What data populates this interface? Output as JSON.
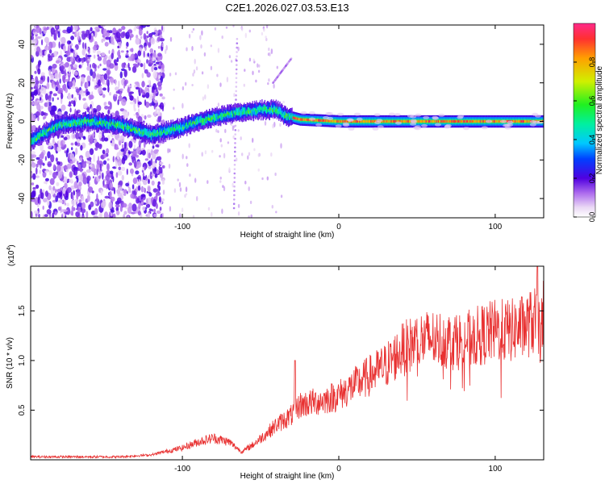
{
  "title": "C2E1.2026.027.03.53.E13",
  "chart_data": [
    {
      "type": "heatmap",
      "name": "spectrogram",
      "xlabel": "Height of straight line (km)",
      "ylabel": "Frequency (Hz)",
      "xlim": [
        -197,
        131
      ],
      "ylim": [
        -50,
        50
      ],
      "xticks": [
        -100,
        0,
        100
      ],
      "xtick_labels": [
        "-100",
        "0",
        "100"
      ],
      "yticks": [
        -40,
        -20,
        0,
        20,
        40
      ],
      "ytick_labels": [
        "-40",
        "-20",
        "0",
        "20",
        "40"
      ],
      "colorbar": {
        "label": "Normalized spectral amplitude",
        "range": [
          0,
          1
        ],
        "ticks": [
          0.0,
          0.2,
          0.4,
          0.6,
          0.8
        ],
        "tick_labels": [
          "0.0",
          "0.2",
          "0.4",
          "0.6",
          "0.8"
        ],
        "colormap": "rainbow"
      },
      "ridge": {
        "x": [
          -197,
          -180,
          -160,
          -140,
          -120,
          -110,
          -100,
          -90,
          -80,
          -70,
          -60,
          -50,
          -40,
          -35,
          -30,
          -25,
          0,
          131
        ],
        "y": [
          -10,
          -2,
          0,
          -2,
          -7,
          -5,
          -3,
          0,
          2,
          4,
          5,
          6,
          6,
          3,
          2,
          1,
          0,
          0
        ]
      },
      "artifacts": [
        {
          "x": [
            -42,
            -30
          ],
          "y": [
            20,
            33
          ]
        },
        {
          "x": [
            -67,
            -65
          ],
          "y": [
            -45,
            45
          ]
        }
      ]
    },
    {
      "type": "line",
      "name": "snr",
      "xlabel": "Height of straight line (km)",
      "ylabel": "SNR (10 * v/v)",
      "multiplier_label": "(x10",
      "multiplier_exp": "4",
      "multiplier_close": ")",
      "xlim": [
        -197,
        131
      ],
      "ylim": [
        0,
        1.95
      ],
      "xticks": [
        -100,
        0,
        100
      ],
      "xtick_labels": [
        "-100",
        "0",
        "100"
      ],
      "yticks": [
        0.5,
        1.0,
        1.5
      ],
      "ytick_labels": [
        "0.5",
        "1.0",
        "1.5"
      ],
      "color": "#e83030",
      "envelope": {
        "x": [
          -197,
          -140,
          -120,
          -100,
          -90,
          -80,
          -70,
          -62,
          -55,
          -45,
          -40,
          -30,
          -25,
          -10,
          0,
          10,
          20,
          30,
          40,
          50,
          60,
          70,
          80,
          90,
          100,
          110,
          120,
          125,
          131
        ],
        "y": [
          0.03,
          0.03,
          0.05,
          0.12,
          0.18,
          0.22,
          0.18,
          0.08,
          0.15,
          0.28,
          0.35,
          0.45,
          0.55,
          0.6,
          0.65,
          0.75,
          0.85,
          0.95,
          1.1,
          1.2,
          1.22,
          1.2,
          1.2,
          1.25,
          1.3,
          1.3,
          1.35,
          1.4,
          1.3
        ]
      },
      "spikes": [
        {
          "x": -28,
          "y": 1.0
        },
        {
          "x": 127,
          "y": 1.95
        },
        {
          "x": 131,
          "y": 1.8
        }
      ]
    }
  ]
}
